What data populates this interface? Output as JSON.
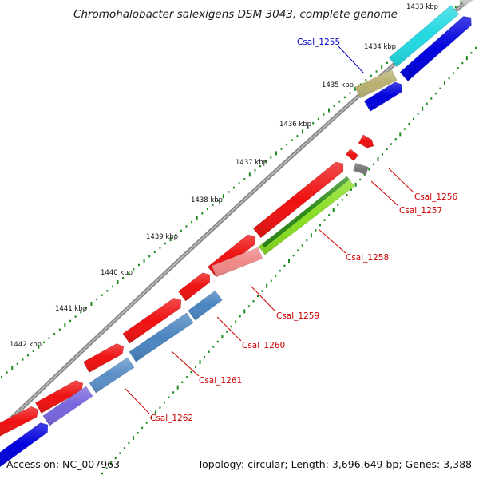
{
  "title": "Chromohalobacter salexigens DSM 3043, complete genome",
  "kbp_labels": [
    "1433 kbp",
    "1434 kbp",
    "1435 kbp",
    "1436 kbp",
    "1437 kbp",
    "1438 kbp",
    "1439 kbp",
    "1440 kbp",
    "1441 kbp",
    "1442 kbp"
  ],
  "gene_labels": [
    {
      "text": "Csal_1255",
      "color": "#0000cc"
    },
    {
      "text": "Csal_1256",
      "color": "#cc0000"
    },
    {
      "text": "Csal_1257",
      "color": "#cc0000"
    },
    {
      "text": "Csal_1258",
      "color": "#cc0000"
    },
    {
      "text": "Csal_1259",
      "color": "#cc0000"
    },
    {
      "text": "Csal_1260",
      "color": "#cc0000"
    },
    {
      "text": "Csal_1261",
      "color": "#cc0000"
    },
    {
      "text": "Csal_1262",
      "color": "#cc0000"
    }
  ],
  "footer": {
    "accession": "Accession: NC_007963",
    "topology": "Topology: circular; Length: 3,696,649 bp; Genes: 3,388"
  },
  "colors": {
    "forward_cds": "#ee1111",
    "reverse_cds": "#0000dd",
    "backbone": "#888888",
    "gc_ticks": "#1a8a1a"
  }
}
